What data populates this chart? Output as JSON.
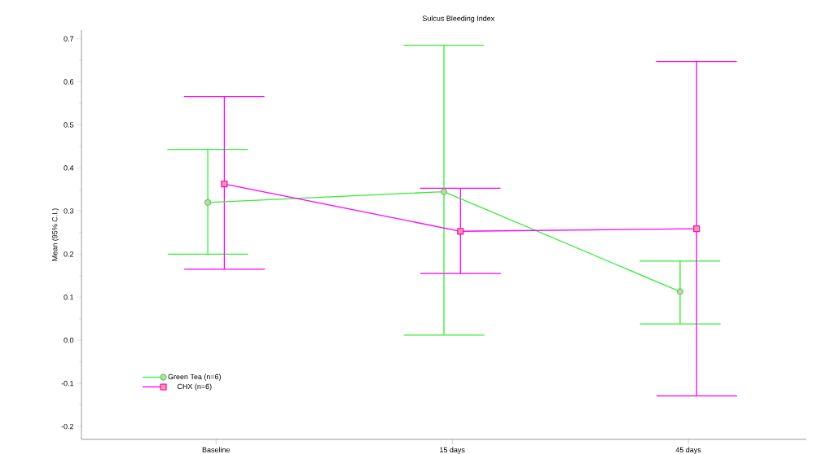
{
  "chart_data": {
    "type": "line",
    "title": "Sulcus Bleeding Index",
    "ylabel": "Mean (95% C.I.)",
    "categories": [
      "Baseline",
      "15 days",
      "45 days"
    ],
    "series": [
      {
        "name": "Green Tea (n=6)",
        "color": "#33ee33",
        "marker": "circle",
        "values": [
          0.32,
          0.345,
          0.113
        ],
        "errors": [
          [
            0.2,
            0.443
          ],
          [
            0.012,
            0.685
          ],
          [
            0.038,
            0.184
          ]
        ]
      },
      {
        "name": "CHX (n=6)",
        "color": "#ff00ff",
        "marker": "square",
        "values": [
          0.363,
          0.253,
          0.259
        ],
        "errors": [
          [
            0.165,
            0.566
          ],
          [
            0.155,
            0.353
          ],
          [
            -0.129,
            0.647
          ]
        ]
      }
    ],
    "ylim": [
      -0.23,
      0.72
    ],
    "yticks": [
      {
        "value": -0.2,
        "label": "-0.2"
      },
      {
        "value": -0.1,
        "label": "-0.1"
      },
      {
        "value": 0,
        "label": "0.0"
      },
      0.1,
      0.2,
      0.3,
      0.4,
      0.5,
      0.6,
      0.7
    ],
    "grid": false,
    "legend": "bottom left",
    "line_style": "solid"
  }
}
